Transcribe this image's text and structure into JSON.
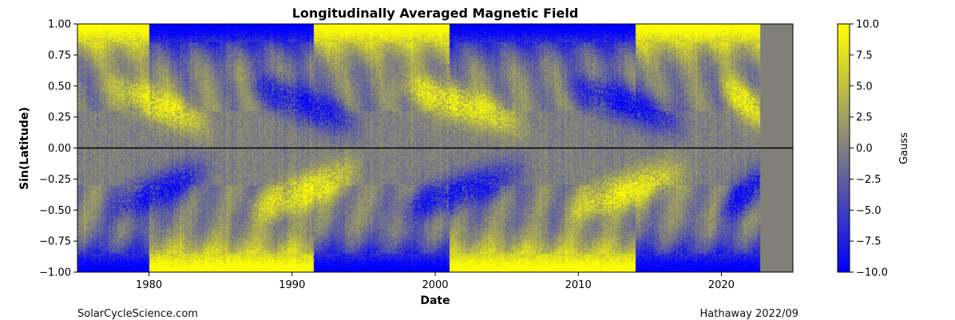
{
  "chart_data": {
    "type": "heatmap",
    "title": "Longitudinally Averaged Magnetic Field",
    "xlabel": "Date",
    "ylabel": "Sin(Latitude)",
    "xlim": [
      1975,
      2025
    ],
    "ylim": [
      -1.0,
      1.0
    ],
    "data_end": 2022.7,
    "x_ticks": [
      1980,
      1990,
      2000,
      2010,
      2020
    ],
    "x_tick_labels": [
      "1980",
      "1990",
      "2000",
      "2010",
      "2020"
    ],
    "y_ticks": [
      1.0,
      0.75,
      0.5,
      0.25,
      0.0,
      -0.25,
      -0.5,
      -0.75,
      -1.0
    ],
    "y_tick_labels": [
      "1.00",
      "0.75",
      "0.50",
      "0.25",
      "0.00",
      "−0.25",
      "−0.50",
      "−0.75",
      "−1.00"
    ],
    "equator_line": 0.0,
    "colorbar": {
      "label": "Gauss",
      "range": [
        -10.0,
        10.0
      ],
      "ticks": [
        10.0,
        7.5,
        5.0,
        2.5,
        0.0,
        -2.5,
        -5.0,
        -7.5,
        -10.0
      ],
      "tick_labels": [
        "10.0",
        "7.5",
        "5.0",
        "2.5",
        "0.0",
        "−2.5",
        "−5.0",
        "−7.5",
        "−10.0"
      ],
      "colors": {
        "low": "#0000ff",
        "mid": "#808080",
        "high": "#ffff00"
      }
    },
    "no_data_color": "#808078",
    "activity_bands": [
      {
        "start": 1976.5,
        "end": 1986.0,
        "peak": 1981.0,
        "north_sign": 1,
        "south_sign": -1
      },
      {
        "start": 1986.5,
        "end": 1996.5,
        "peak": 1990.5,
        "north_sign": -1,
        "south_sign": 1
      },
      {
        "start": 1996.5,
        "end": 2008.5,
        "peak": 2001.0,
        "north_sign": 1,
        "south_sign": -1
      },
      {
        "start": 2008.5,
        "end": 2019.5,
        "peak": 2014.0,
        "north_sign": -1,
        "south_sign": 1
      },
      {
        "start": 2019.5,
        "end": 2025.0,
        "peak": 2025.0,
        "north_sign": 1,
        "south_sign": -1
      }
    ],
    "polar_reversals": [
      {
        "year": 1980.0,
        "north_after": -1,
        "south_after": 1
      },
      {
        "year": 1991.5,
        "north_after": 1,
        "south_after": -1
      },
      {
        "year": 2001.0,
        "north_after": -1,
        "south_after": 1
      },
      {
        "year": 2014.0,
        "north_after": 1,
        "south_after": -1
      }
    ],
    "initial_polar": {
      "north": 1,
      "south": -1
    }
  },
  "credits": {
    "left": "SolarCycleScience.com",
    "right": "Hathaway 2022/09"
  }
}
